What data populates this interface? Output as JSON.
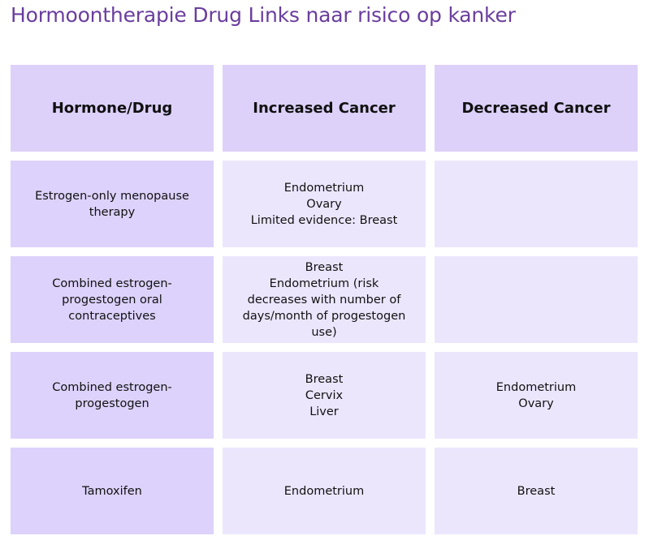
{
  "header": {
    "title": "Hormoontherapie Drug Links naar risico op kanker"
  },
  "table": {
    "columns": [
      "Hormone/Drug",
      "Increased Cancer",
      "Decreased Cancer"
    ],
    "rows": [
      [
        [
          "Estrogen-only menopause therapy"
        ],
        [
          "Endometrium",
          "Ovary",
          "Limited evidence: Breast"
        ],
        []
      ],
      [
        [
          "Combined estrogen-progestogen oral contraceptives"
        ],
        [
          "Breast",
          "Endometrium (risk decreases with number of days/month of progestogen use)"
        ],
        []
      ],
      [
        [
          "Combined estrogen-progestogen"
        ],
        [
          "Breast",
          "Cervix",
          "Liver"
        ],
        [
          "Endometrium",
          "Ovary"
        ]
      ],
      [
        [
          "Tamoxifen"
        ],
        [
          "Endometrium"
        ],
        [
          "Breast"
        ]
      ]
    ]
  }
}
